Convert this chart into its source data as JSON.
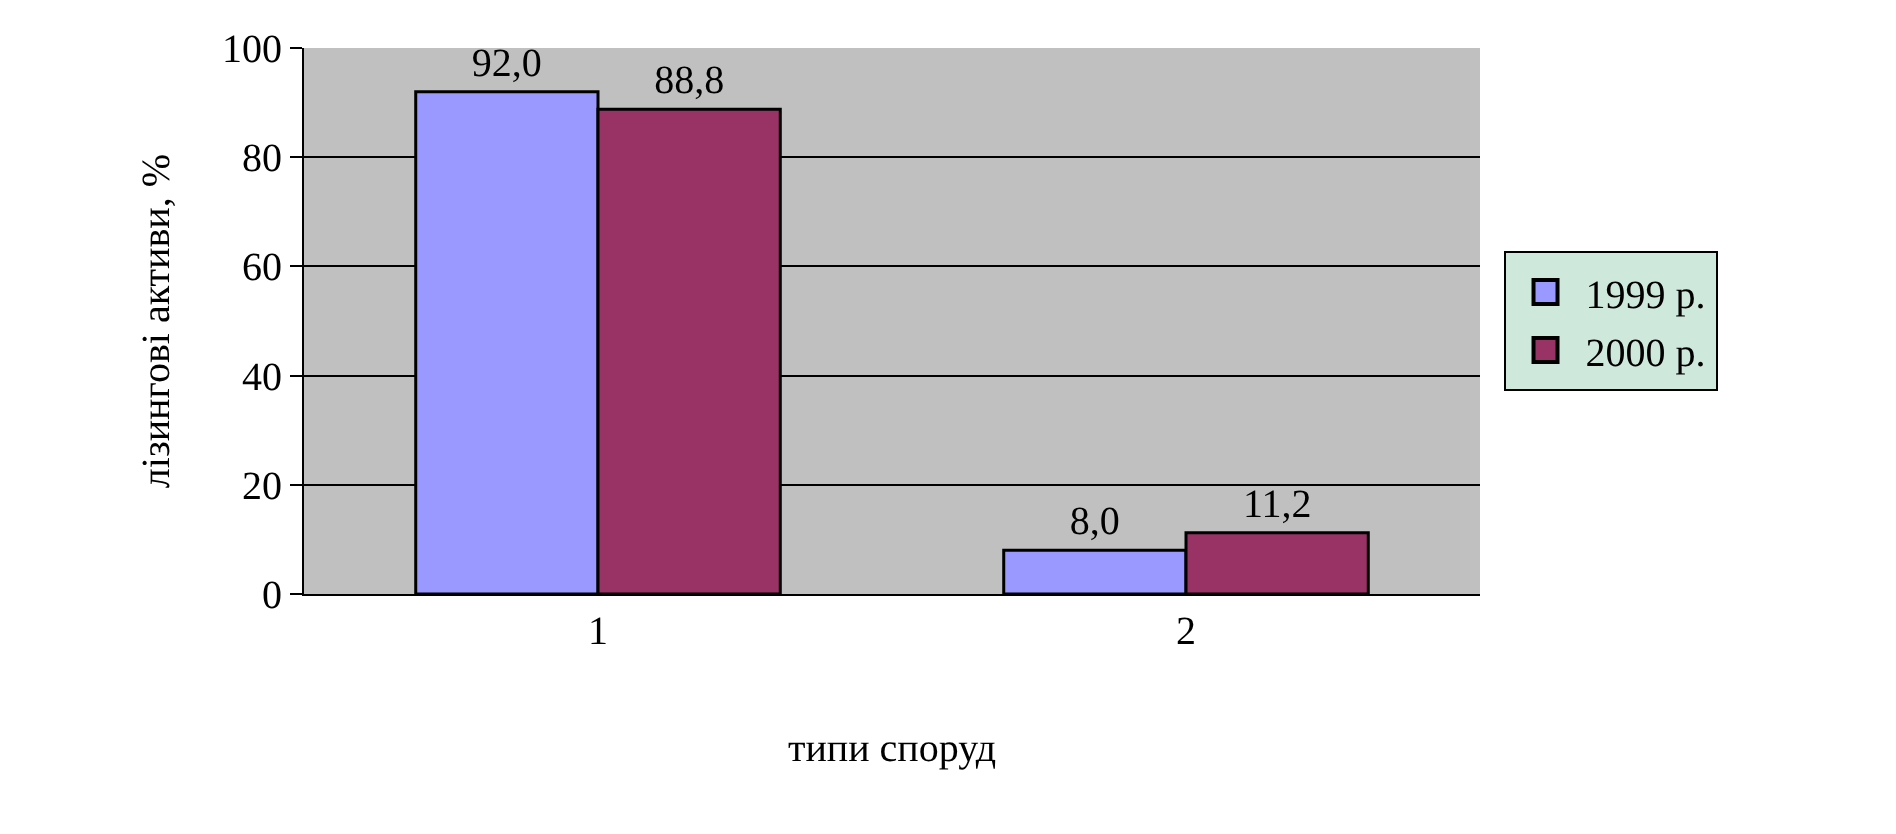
{
  "chart_data": {
    "type": "bar",
    "xlabel": "типи споруд",
    "ylabel": "лізингові активи, %",
    "categories": [
      "1",
      "2"
    ],
    "series": [
      {
        "name": "1999 р.",
        "color": "#9999ff",
        "values": [
          92.0,
          8.0
        ],
        "value_labels": [
          "92,0",
          "8,0"
        ]
      },
      {
        "name": "2000 р.",
        "color": "#993366",
        "values": [
          88.8,
          11.2
        ],
        "value_labels": [
          "88,8",
          "11,2"
        ]
      }
    ],
    "ylim": [
      0,
      100
    ],
    "yticks": [
      0,
      20,
      40,
      60,
      80,
      100
    ],
    "grid": "y",
    "legend": "right"
  }
}
